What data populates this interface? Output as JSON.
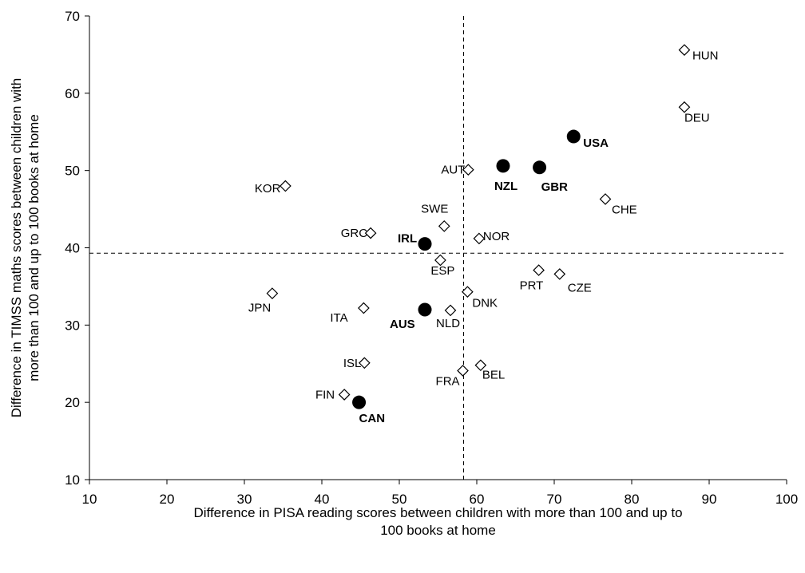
{
  "chart_data": {
    "type": "scatter",
    "xlabel": [
      "Difference in PISA reading scores between children with more than 100 and up to",
      "100 books at home"
    ],
    "ylabel": [
      "Difference in TIMSS maths scores between children with",
      "more than 100 and up to 100 books at home"
    ],
    "xlim": [
      10,
      100
    ],
    "ylim": [
      10,
      70
    ],
    "xticks": [
      "10",
      "20",
      "30",
      "40",
      "50",
      "60",
      "70",
      "80",
      "90",
      "100"
    ],
    "yticks": [
      "10",
      "20",
      "30",
      "40",
      "50",
      "60",
      "70"
    ],
    "grid": false,
    "reference_lines": {
      "x": 58.3,
      "y": 39.3,
      "style": "dashed"
    },
    "series": [
      {
        "marker": "open-diamond",
        "points": [
          {
            "label": "HUN",
            "x": 86.8,
            "y": 65.6
          },
          {
            "label": "DEU",
            "x": 86.8,
            "y": 58.2
          },
          {
            "label": "CHE",
            "x": 76.6,
            "y": 46.3
          },
          {
            "label": "AUT",
            "x": 58.9,
            "y": 50.1
          },
          {
            "label": "KOR",
            "x": 35.3,
            "y": 48.0
          },
          {
            "label": "SWE",
            "x": 55.8,
            "y": 42.8
          },
          {
            "label": "GRC",
            "x": 46.3,
            "y": 41.9
          },
          {
            "label": "NOR",
            "x": 60.3,
            "y": 41.2
          },
          {
            "label": "ESP",
            "x": 55.3,
            "y": 38.4
          },
          {
            "label": "PRT",
            "x": 68.0,
            "y": 37.1
          },
          {
            "label": "CZE",
            "x": 70.7,
            "y": 36.6
          },
          {
            "label": "DNK",
            "x": 58.8,
            "y": 34.3
          },
          {
            "label": "JPN",
            "x": 33.6,
            "y": 34.1
          },
          {
            "label": "ITA",
            "x": 45.4,
            "y": 32.2
          },
          {
            "label": "NLD",
            "x": 56.6,
            "y": 31.9
          },
          {
            "label": "ISL",
            "x": 45.5,
            "y": 25.1
          },
          {
            "label": "BEL",
            "x": 60.5,
            "y": 24.8
          },
          {
            "label": "FRA",
            "x": 58.2,
            "y": 24.1
          },
          {
            "label": "FIN",
            "x": 42.9,
            "y": 21.0
          }
        ]
      },
      {
        "marker": "filled-circle",
        "points": [
          {
            "label": "USA",
            "x": 72.5,
            "y": 54.4
          },
          {
            "label": "NZL",
            "x": 63.4,
            "y": 50.6
          },
          {
            "label": "GBR",
            "x": 68.1,
            "y": 50.4
          },
          {
            "label": "IRL",
            "x": 53.3,
            "y": 40.5
          },
          {
            "label": "AUS",
            "x": 53.3,
            "y": 32.0
          },
          {
            "label": "CAN",
            "x": 44.8,
            "y": 20.0
          }
        ]
      }
    ]
  }
}
